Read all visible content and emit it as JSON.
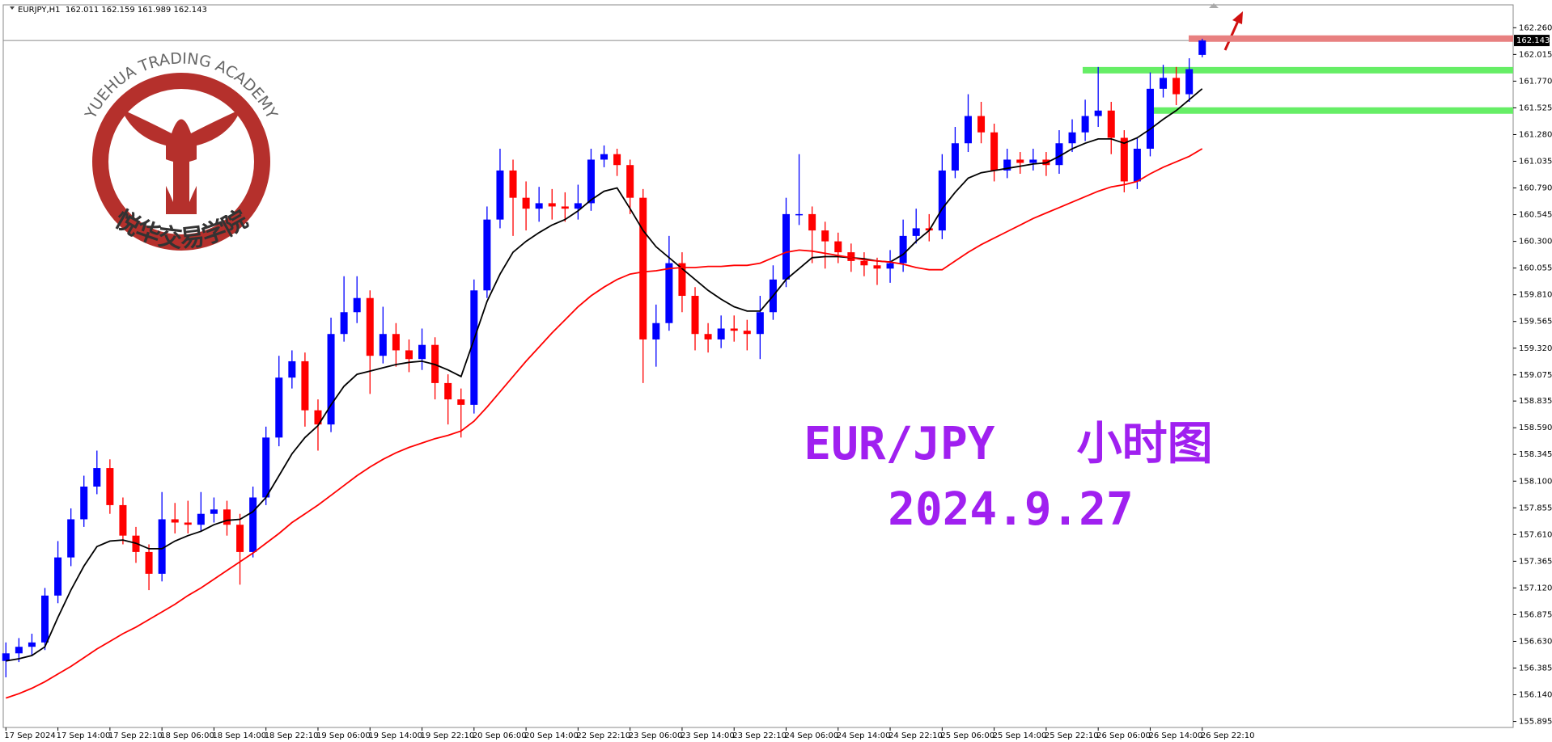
{
  "chart_data": {
    "type": "candlestick",
    "header": "EURJPY,H1  162.011 162.159 161.989 162.143",
    "annotations": [
      "EUR/JPY   小时图",
      "2024.9.27"
    ],
    "logo_text": "YUEHUA TRADING ACADEMY",
    "logo_text_cn": "悦华交易学院",
    "up_color": "#0000ff",
    "down_color": "#ff0000",
    "ylim": [
      155.84,
      162.47
    ],
    "yticks": [
      155.895,
      {
        "value": 156.14,
        "label": "156.140"
      },
      156.385,
      {
        "value": 156.63,
        "label": "156.630"
      },
      156.875,
      {
        "value": 157.12,
        "label": "157.120"
      },
      157.365,
      {
        "value": 157.61,
        "label": "157.610"
      },
      157.855,
      {
        "value": 158.1,
        "label": "158.100"
      },
      158.345,
      {
        "value": 158.59,
        "label": "158.590"
      },
      158.835,
      159.075,
      {
        "value": 159.32,
        "label": "159.320"
      },
      159.565,
      {
        "value": 159.81,
        "label": "159.810"
      },
      160.055,
      {
        "value": 160.3,
        "label": "160.300"
      },
      160.545,
      {
        "value": 160.79,
        "label": "160.790"
      },
      161.035,
      {
        "value": 161.28,
        "label": "161.280"
      },
      161.525,
      {
        "value": 161.77,
        "label": "161.770"
      },
      162.015,
      {
        "value": 162.26,
        "label": "162.260"
      }
    ],
    "last_price": 162.143,
    "categories": [
      "17 Sep 2024",
      null,
      null,
      null,
      "17 Sep 14:00",
      null,
      null,
      null,
      "17 Sep 22:10",
      null,
      null,
      null,
      "18 Sep 06:00",
      null,
      null,
      null,
      "18 Sep 14:00",
      null,
      null,
      null,
      "18 Sep 22:10",
      null,
      null,
      null,
      "19 Sep 06:00",
      null,
      null,
      null,
      "19 Sep 14:00",
      null,
      null,
      null,
      "19 Sep 22:10",
      null,
      null,
      null,
      "20 Sep 06:00",
      null,
      null,
      null,
      "20 Sep 14:00",
      null,
      null,
      null,
      "22 Sep 22:10",
      null,
      null,
      null,
      "23 Sep 06:00",
      null,
      null,
      null,
      "23 Sep 14:00",
      null,
      null,
      null,
      "23 Sep 22:10",
      null,
      null,
      null,
      "24 Sep 06:00",
      null,
      null,
      null,
      "24 Sep 14:00",
      null,
      null,
      null,
      "24 Sep 22:10",
      null,
      null,
      null,
      "25 Sep 06:00",
      null,
      null,
      null,
      "25 Sep 14:00",
      null,
      null,
      null,
      "25 Sep 22:10",
      null,
      null,
      null,
      "26 Sep 06:00",
      null,
      null,
      null,
      "26 Sep 14:00",
      null,
      null,
      null,
      "26 Sep 22:10"
    ],
    "open": [
      156.45,
      156.52,
      156.58,
      156.62,
      157.05,
      157.4,
      157.75,
      158.05,
      158.22,
      157.88,
      157.6,
      157.45,
      157.25,
      157.75,
      157.72,
      157.7,
      157.8,
      157.84,
      157.7,
      157.45,
      157.95,
      158.5,
      159.05,
      159.2,
      158.75,
      158.62,
      159.45,
      159.65,
      159.78,
      159.25,
      159.45,
      159.3,
      159.22,
      159.35,
      159.0,
      158.85,
      158.8,
      159.85,
      160.5,
      160.95,
      160.7,
      160.6,
      160.65,
      160.62,
      160.6,
      160.65,
      161.05,
      161.1,
      161.0,
      160.7,
      159.4,
      159.55,
      160.1,
      159.8,
      159.45,
      159.4,
      159.5,
      159.48,
      159.45,
      159.65,
      159.95,
      160.55,
      160.55,
      160.4,
      160.3,
      160.2,
      160.12,
      160.08,
      160.05,
      160.1,
      160.35,
      160.42,
      160.4,
      160.95,
      161.2,
      161.45,
      161.3,
      160.95,
      161.05,
      161.02,
      161.05,
      161.0,
      161.2,
      161.3,
      161.45,
      161.5,
      161.25,
      160.85,
      161.15,
      161.7,
      161.8,
      161.65,
      162.011
    ],
    "high": [
      156.62,
      156.66,
      156.7,
      157.12,
      157.55,
      157.85,
      158.15,
      158.38,
      158.3,
      157.95,
      157.68,
      157.52,
      158.0,
      157.9,
      157.92,
      158.0,
      157.95,
      157.92,
      157.8,
      158.05,
      158.6,
      159.25,
      159.3,
      159.28,
      158.85,
      159.6,
      159.98,
      159.98,
      159.85,
      159.7,
      159.55,
      159.4,
      159.5,
      159.42,
      159.08,
      158.95,
      159.95,
      160.62,
      161.15,
      161.05,
      160.85,
      160.8,
      160.78,
      160.75,
      160.82,
      161.15,
      161.18,
      161.15,
      161.05,
      160.78,
      159.72,
      160.35,
      160.2,
      159.88,
      159.55,
      159.62,
      159.62,
      159.58,
      159.8,
      160.08,
      160.7,
      161.1,
      160.62,
      160.48,
      160.38,
      160.28,
      160.2,
      160.15,
      160.22,
      160.5,
      160.6,
      160.55,
      161.1,
      161.35,
      161.65,
      161.58,
      161.38,
      161.15,
      161.12,
      161.15,
      161.12,
      161.32,
      161.42,
      161.6,
      161.9,
      161.58,
      161.32,
      161.25,
      161.85,
      161.92,
      161.9,
      161.98,
      162.159
    ],
    "low": [
      156.3,
      156.44,
      156.5,
      156.55,
      156.98,
      157.32,
      157.68,
      157.98,
      157.8,
      157.52,
      157.35,
      157.1,
      157.18,
      157.62,
      157.62,
      157.64,
      157.72,
      157.6,
      157.15,
      157.4,
      157.88,
      158.42,
      158.95,
      158.6,
      158.38,
      158.55,
      159.38,
      159.55,
      158.9,
      159.18,
      159.15,
      159.1,
      159.12,
      158.85,
      158.62,
      158.5,
      158.72,
      159.78,
      160.42,
      160.35,
      160.4,
      160.48,
      160.5,
      160.48,
      160.5,
      160.58,
      160.98,
      160.9,
      160.55,
      159.0,
      159.15,
      159.48,
      159.65,
      159.3,
      159.28,
      159.32,
      159.38,
      159.3,
      159.22,
      159.58,
      159.88,
      160.45,
      160.1,
      160.05,
      160.1,
      160.02,
      159.98,
      159.9,
      159.92,
      160.02,
      160.28,
      160.3,
      160.32,
      160.88,
      161.12,
      161.2,
      160.85,
      160.88,
      160.92,
      160.95,
      160.9,
      160.92,
      161.12,
      161.22,
      161.35,
      161.1,
      160.75,
      160.78,
      161.08,
      161.62,
      161.55,
      161.58,
      161.989
    ],
    "close": [
      156.52,
      156.58,
      156.62,
      157.05,
      157.4,
      157.75,
      158.05,
      158.22,
      157.88,
      157.6,
      157.45,
      157.25,
      157.75,
      157.72,
      157.7,
      157.8,
      157.84,
      157.7,
      157.45,
      157.95,
      158.5,
      159.05,
      159.2,
      158.75,
      158.62,
      159.45,
      159.65,
      159.78,
      159.25,
      159.45,
      159.3,
      159.22,
      159.35,
      159.0,
      158.85,
      158.8,
      159.85,
      160.5,
      160.95,
      160.7,
      160.6,
      160.65,
      160.62,
      160.6,
      160.65,
      161.05,
      161.1,
      161.0,
      160.7,
      159.4,
      159.55,
      160.1,
      159.8,
      159.45,
      159.4,
      159.5,
      159.48,
      159.45,
      159.65,
      159.95,
      160.55,
      160.55,
      160.4,
      160.3,
      160.2,
      160.12,
      160.08,
      160.05,
      160.1,
      160.35,
      160.42,
      160.4,
      160.95,
      161.2,
      161.45,
      161.3,
      160.95,
      161.05,
      161.02,
      161.05,
      161.0,
      161.2,
      161.3,
      161.45,
      161.5,
      161.25,
      160.85,
      161.15,
      161.7,
      161.8,
      161.65,
      161.88,
      162.143
    ],
    "lines": [
      {
        "color": "#000000",
        "values": [
          156.45,
          156.47,
          156.5,
          156.58,
          156.85,
          157.1,
          157.32,
          157.5,
          157.55,
          157.56,
          157.53,
          157.48,
          157.48,
          157.55,
          157.6,
          157.64,
          157.7,
          157.74,
          157.75,
          157.82,
          157.95,
          158.15,
          158.35,
          158.5,
          158.61,
          158.8,
          158.97,
          159.08,
          159.11,
          159.14,
          159.17,
          159.19,
          159.2,
          159.17,
          159.12,
          159.06,
          159.4,
          159.75,
          160.0,
          160.2,
          160.3,
          160.38,
          160.45,
          160.5,
          160.58,
          160.68,
          160.76,
          160.79,
          160.6,
          160.4,
          160.25,
          160.15,
          160.05,
          159.95,
          159.85,
          159.77,
          159.7,
          159.66,
          159.66,
          159.8,
          159.95,
          160.05,
          160.15,
          160.16,
          160.16,
          160.15,
          160.14,
          160.12,
          160.11,
          160.18,
          160.3,
          160.4,
          160.6,
          160.75,
          160.88,
          160.93,
          160.95,
          160.97,
          160.99,
          161.01,
          161.02,
          161.08,
          161.15,
          161.2,
          161.24,
          161.24,
          161.2,
          161.25,
          161.33,
          161.42,
          161.5,
          161.6,
          161.7
        ]
      },
      {
        "color": "#ff0000",
        "values": [
          156.11,
          156.15,
          156.2,
          156.26,
          156.33,
          156.4,
          156.48,
          156.56,
          156.63,
          156.7,
          156.76,
          156.83,
          156.9,
          156.97,
          157.05,
          157.12,
          157.2,
          157.28,
          157.36,
          157.44,
          157.53,
          157.62,
          157.72,
          157.8,
          157.88,
          157.97,
          158.06,
          158.15,
          158.23,
          158.3,
          158.36,
          158.41,
          158.45,
          158.49,
          158.52,
          158.56,
          158.65,
          158.78,
          158.92,
          159.06,
          159.2,
          159.33,
          159.46,
          159.58,
          159.7,
          159.8,
          159.88,
          159.95,
          160.0,
          160.02,
          160.03,
          160.05,
          160.06,
          160.06,
          160.07,
          160.07,
          160.08,
          160.08,
          160.1,
          160.15,
          160.2,
          160.22,
          160.21,
          160.19,
          160.17,
          160.15,
          160.13,
          160.12,
          160.11,
          160.09,
          160.06,
          160.04,
          160.04,
          160.12,
          160.2,
          160.27,
          160.33,
          160.39,
          160.45,
          160.51,
          160.56,
          160.61,
          160.66,
          160.71,
          160.76,
          160.8,
          160.82,
          160.85,
          160.92,
          160.98,
          161.03,
          161.08,
          161.15
        ]
      }
    ],
    "levels": [
      {
        "value": 162.16,
        "color": "#e88080"
      },
      {
        "value": 161.87,
        "color": "#66ee66"
      },
      {
        "value": 161.5,
        "color": "#66ee66"
      }
    ]
  }
}
